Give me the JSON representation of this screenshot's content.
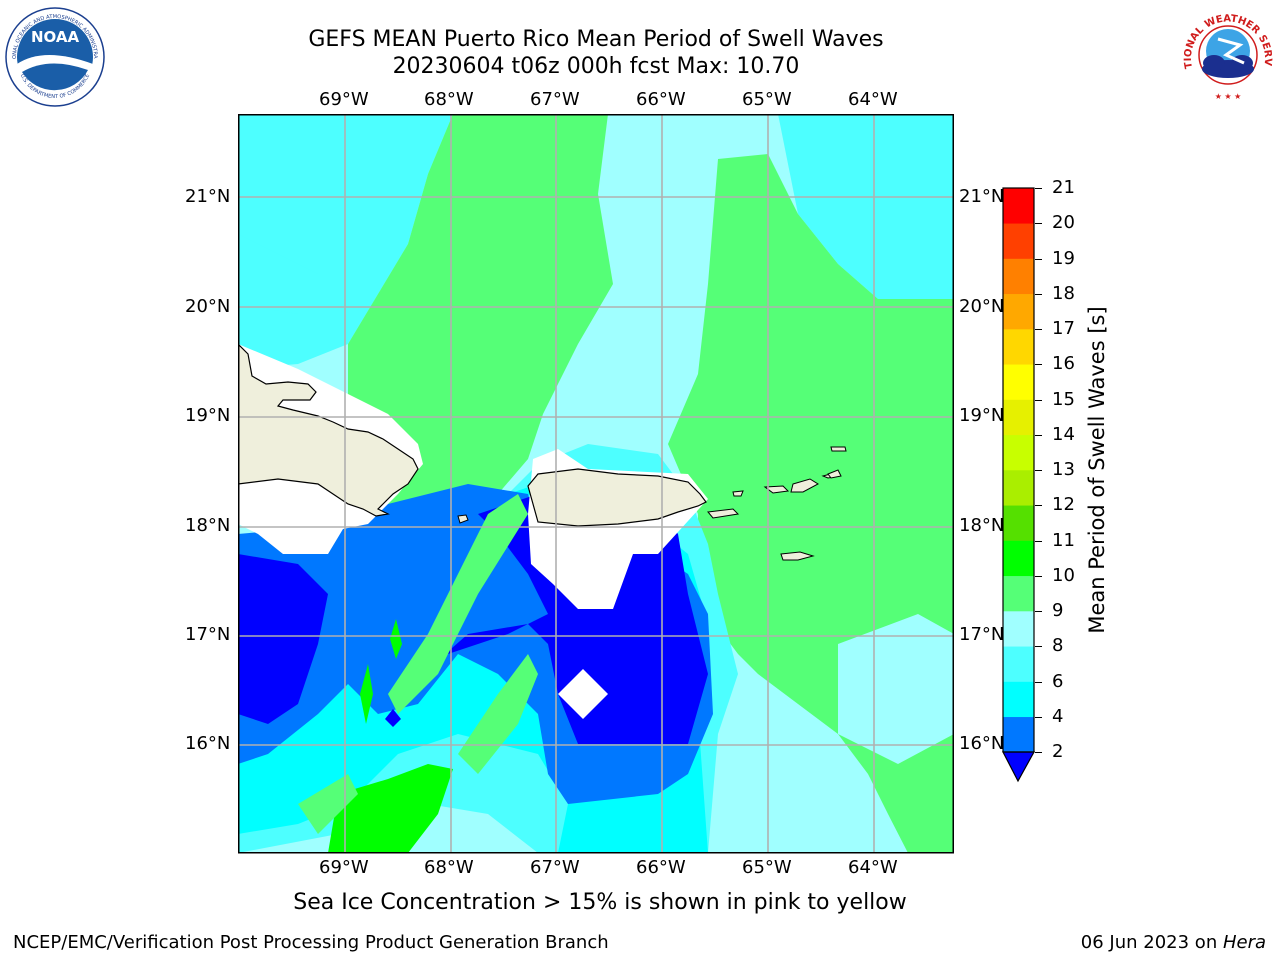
{
  "header": {
    "title_line1": "GEFS MEAN Puerto Rico Mean Period of Swell Waves",
    "title_line2": "20230604 t06z 000h fcst   Max: 10.70"
  },
  "logos": {
    "left": {
      "name": "NOAA",
      "ring_text": "NATIONAL OCEANIC AND ATMOSPHERIC ADMINISTRATION",
      "ring_text_bottom": "U.S. DEPARTMENT OF COMMERCE"
    },
    "right": {
      "ring_text": "NATIONAL WEATHER SERVICE"
    }
  },
  "map": {
    "lon_ticks": [
      "69°W",
      "68°W",
      "67°W",
      "66°W",
      "65°W",
      "64°W"
    ],
    "lat_ticks": [
      "21°N",
      "20°N",
      "19°N",
      "18°N",
      "17°N",
      "16°N"
    ],
    "lon_range": [
      -70.0,
      -63.3
    ],
    "lat_range": [
      15.0,
      21.75
    ],
    "grid": true
  },
  "colorbar": {
    "label": "Mean Period of Swell Waves [s]",
    "ticks": [
      "2",
      "4",
      "6",
      "8",
      "9",
      "10",
      "11",
      "12",
      "13",
      "14",
      "15",
      "16",
      "17",
      "18",
      "19",
      "20",
      "21"
    ],
    "colors": [
      "#0000ff",
      "#0078ff",
      "#00ffff",
      "#4dffff",
      "#a0ffff",
      "#55ff77",
      "#00ff00",
      "#55e000",
      "#aaee00",
      "#c8ff00",
      "#e6f000",
      "#ffff00",
      "#ffd700",
      "#ffa800",
      "#ff8000",
      "#ff4000",
      "#ff0000"
    ]
  },
  "caption": "Sea Ice Concentration > 15% is shown in pink to yellow",
  "footer": {
    "left": "NCEP/EMC/Verification Post Processing Product Generation Branch",
    "date": "06 Jun 2023 on ",
    "host": "Hera"
  }
}
